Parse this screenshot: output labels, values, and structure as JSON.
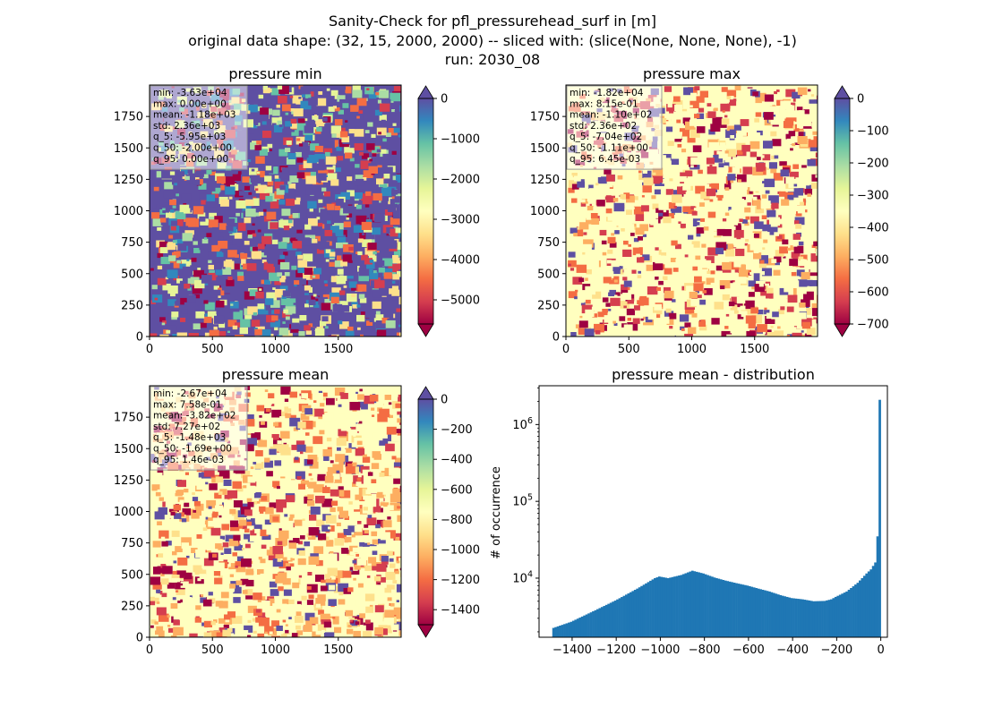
{
  "figure": {
    "title_lines": [
      "Sanity-Check for pfl_pressurehead_surf in [m]",
      "original data shape: (32, 15, 2000, 2000) -- sliced with: (slice(None, None, None), -1)",
      "run: 2030_08"
    ]
  },
  "chart_data": [
    {
      "type": "heatmap",
      "title": "pressure min",
      "colormap": "Spectral",
      "over_color": "#5e4fa2",
      "xlim": [
        0,
        2000
      ],
      "ylim": [
        0,
        2000
      ],
      "xticks": [
        0,
        500,
        1000,
        1500
      ],
      "yticks": [
        0,
        250,
        500,
        750,
        1000,
        1250,
        1500,
        1750
      ],
      "colorbar": {
        "vmin": -5600,
        "vmax": 0,
        "ticks": [
          0,
          -1000,
          -2000,
          -3000,
          -4000,
          -5000
        ],
        "extend": "both"
      },
      "stats": [
        "min: -3.63e+04",
        "max: 0.00e+00",
        "mean: -1.18e+03",
        "std: 2.36e+03",
        "q_5: -5.95e+03",
        "q_50: -2.00e+00",
        "q_95: 0.00e+00"
      ]
    },
    {
      "type": "heatmap",
      "title": "pressure max",
      "colormap": "Spectral",
      "over_color": "#5e4fa2",
      "xlim": [
        0,
        2000
      ],
      "ylim": [
        0,
        2000
      ],
      "xticks": [
        0,
        500,
        1000,
        1500
      ],
      "yticks": [
        0,
        250,
        500,
        750,
        1000,
        1250,
        1500,
        1750
      ],
      "colorbar": {
        "vmin": -700,
        "vmax": 0,
        "ticks": [
          0,
          -100,
          -200,
          -300,
          -400,
          -500,
          -600,
          -700
        ],
        "extend": "both"
      },
      "stats": [
        "min: -1.82e+04",
        "max: 8.15e-01",
        "mean: -1.10e+02",
        "std: 2.36e+02",
        "q_5: -7.04e+02",
        "q_50: -1.11e+00",
        "q_95: 6.45e-03"
      ]
    },
    {
      "type": "heatmap",
      "title": "pressure mean",
      "colormap": "Spectral",
      "over_color": "#5e4fa2",
      "xlim": [
        0,
        2000
      ],
      "ylim": [
        0,
        2000
      ],
      "xticks": [
        0,
        500,
        1000,
        1500
      ],
      "yticks": [
        0,
        250,
        500,
        750,
        1000,
        1250,
        1500,
        1750
      ],
      "colorbar": {
        "vmin": -1500,
        "vmax": 0,
        "ticks": [
          0,
          -200,
          -400,
          -600,
          -800,
          -1000,
          -1200,
          -1400
        ],
        "extend": "both"
      },
      "stats": [
        "min: -2.67e+04",
        "max: 7.58e-01",
        "mean: -3.82e+02",
        "std: 7.27e+02",
        "q_5: -1.48e+03",
        "q_50: -1.69e+00",
        "q_95: 1.46e-03"
      ]
    },
    {
      "type": "bar",
      "title": "pressure mean - distribution",
      "ylabel": "# of occurrence",
      "xlabel": "",
      "yscale": "log",
      "xlim": [
        -1550,
        30
      ],
      "ylim": [
        1700,
        3200000
      ],
      "xticks": [
        -1400,
        -1200,
        -1000,
        -800,
        -600,
        -400,
        -200,
        0
      ],
      "yticks": [
        {
          "value": 10000,
          "label": "10^4"
        },
        {
          "value": 100000,
          "label": "10^5"
        },
        {
          "value": 1000000,
          "label": "10^6"
        }
      ],
      "bar_color": "#1f77b4",
      "bin_width": 10,
      "anchors": [
        [
          -1480,
          2250
        ],
        [
          -1400,
          2700
        ],
        [
          -1300,
          3700
        ],
        [
          -1200,
          5100
        ],
        [
          -1100,
          7300
        ],
        [
          -1020,
          10000
        ],
        [
          -1000,
          10500
        ],
        [
          -960,
          10000
        ],
        [
          -900,
          11000
        ],
        [
          -850,
          12500
        ],
        [
          -800,
          11500
        ],
        [
          -750,
          10200
        ],
        [
          -700,
          9300
        ],
        [
          -650,
          8600
        ],
        [
          -600,
          8000
        ],
        [
          -550,
          7300
        ],
        [
          -500,
          6700
        ],
        [
          -450,
          6000
        ],
        [
          -400,
          5500
        ],
        [
          -350,
          5300
        ],
        [
          -300,
          5000
        ],
        [
          -250,
          5050
        ],
        [
          -220,
          5300
        ],
        [
          -200,
          5700
        ],
        [
          -150,
          6700
        ],
        [
          -100,
          8700
        ],
        [
          -60,
          11500
        ],
        [
          -40,
          13000
        ],
        [
          -20,
          16000
        ],
        [
          -10,
          35000
        ],
        [
          0,
          2100000
        ]
      ]
    }
  ]
}
